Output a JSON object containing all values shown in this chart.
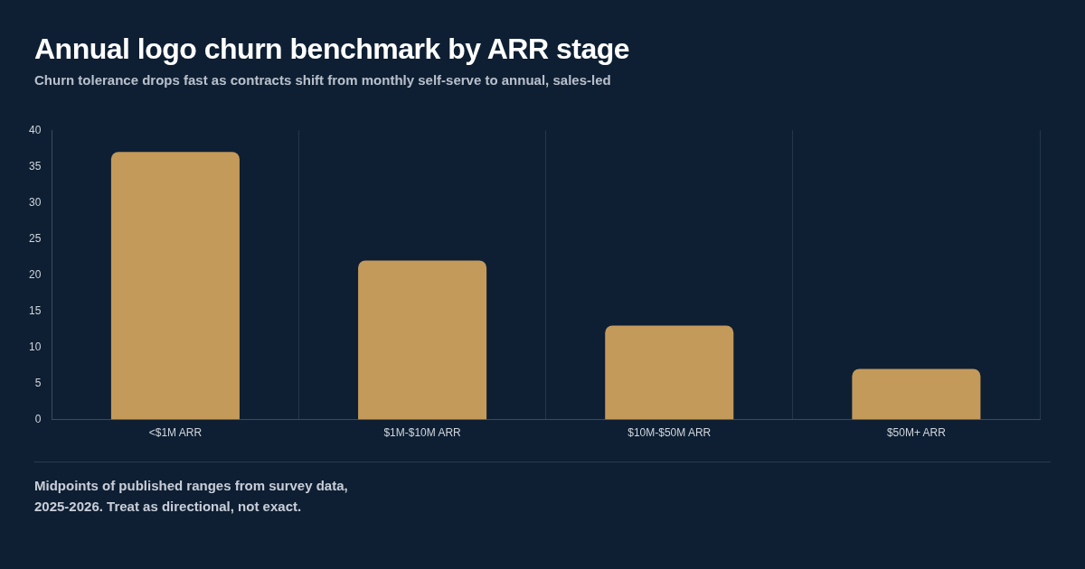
{
  "chart_data": {
    "type": "bar",
    "title": "Annual logo churn benchmark by ARR stage",
    "subtitle": "Churn tolerance drops fast as contracts shift from monthly self-serve to annual, sales-led",
    "categories": [
      "<$1M ARR",
      "$1M-$10M ARR",
      "$10M-$50M ARR",
      "$50M+ ARR"
    ],
    "values": [
      37,
      22,
      13,
      7
    ],
    "color": "#c49a5a",
    "ylim": [
      0,
      40
    ],
    "yticks": [
      0,
      5,
      10,
      15,
      20,
      25,
      30,
      35,
      40
    ],
    "grid": "x",
    "annotations": [
      "Midpoints of published ranges from survey data, 2025-2026. Treat as directional, not exact."
    ]
  }
}
